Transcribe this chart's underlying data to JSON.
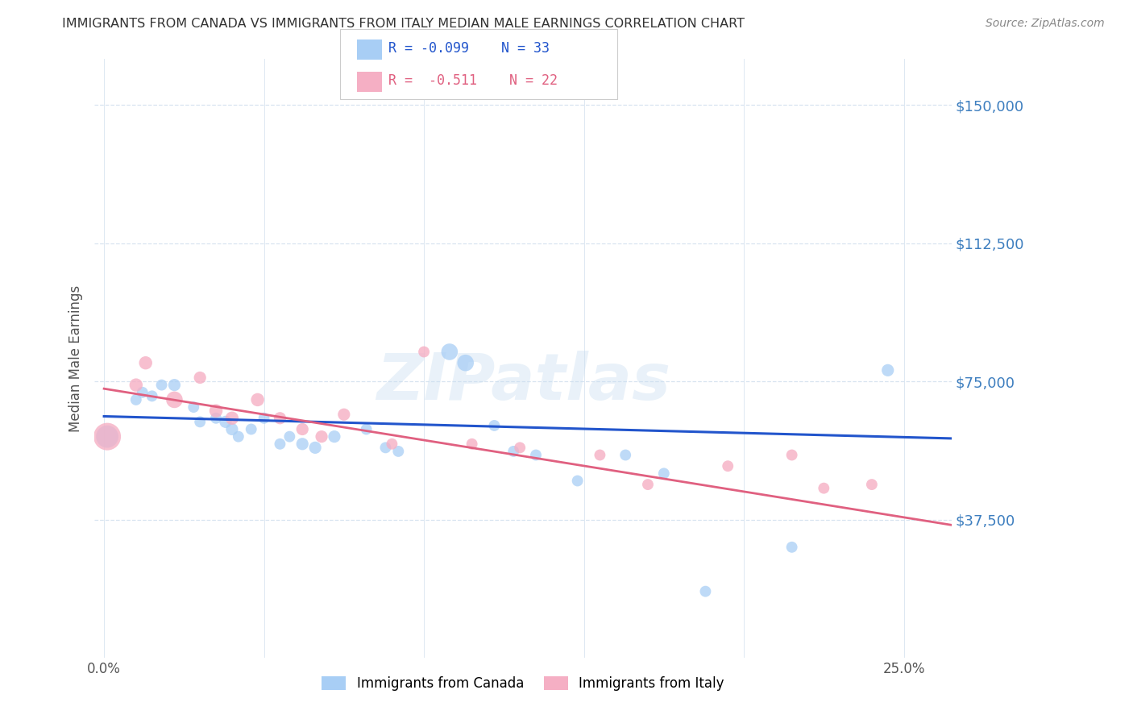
{
  "title": "IMMIGRANTS FROM CANADA VS IMMIGRANTS FROM ITALY MEDIAN MALE EARNINGS CORRELATION CHART",
  "source": "Source: ZipAtlas.com",
  "ylabel": "Median Male Earnings",
  "ytick_labels": [
    "$37,500",
    "$75,000",
    "$112,500",
    "$150,000"
  ],
  "ytick_values": [
    37500,
    75000,
    112500,
    150000
  ],
  "ymin": 0,
  "ymax": 162500,
  "xmin": -0.003,
  "xmax": 0.265,
  "background_color": "#ffffff",
  "watermark": "ZIPatlas",
  "legend_r_canada": "R = -0.099",
  "legend_n_canada": "N = 33",
  "legend_r_italy": "R =  -0.511",
  "legend_n_italy": "N = 22",
  "canada_color": "#a8cef5",
  "italy_color": "#f5afc4",
  "canada_line_color": "#2255cc",
  "italy_line_color": "#e06080",
  "canada_x": [
    0.001,
    0.01,
    0.012,
    0.015,
    0.018,
    0.022,
    0.028,
    0.03,
    0.035,
    0.038,
    0.04,
    0.042,
    0.046,
    0.05,
    0.055,
    0.058,
    0.062,
    0.066,
    0.072,
    0.082,
    0.088,
    0.092,
    0.108,
    0.113,
    0.122,
    0.128,
    0.135,
    0.148,
    0.163,
    0.175,
    0.188,
    0.215,
    0.245
  ],
  "canada_y": [
    60000,
    70000,
    72000,
    71000,
    74000,
    74000,
    68000,
    64000,
    65000,
    64000,
    62000,
    60000,
    62000,
    65000,
    58000,
    60000,
    58000,
    57000,
    60000,
    62000,
    57000,
    56000,
    83000,
    80000,
    63000,
    56000,
    55000,
    48000,
    55000,
    50000,
    18000,
    30000,
    78000
  ],
  "canada_size": [
    400,
    100,
    100,
    100,
    100,
    120,
    100,
    100,
    100,
    120,
    120,
    100,
    100,
    100,
    100,
    100,
    120,
    120,
    120,
    100,
    100,
    100,
    220,
    220,
    100,
    100,
    100,
    100,
    100,
    100,
    100,
    100,
    120
  ],
  "italy_x": [
    0.001,
    0.01,
    0.013,
    0.022,
    0.03,
    0.035,
    0.04,
    0.048,
    0.055,
    0.062,
    0.068,
    0.075,
    0.09,
    0.1,
    0.115,
    0.13,
    0.155,
    0.17,
    0.195,
    0.215,
    0.225,
    0.24
  ],
  "italy_y": [
    60000,
    74000,
    80000,
    70000,
    76000,
    67000,
    65000,
    70000,
    65000,
    62000,
    60000,
    66000,
    58000,
    83000,
    58000,
    57000,
    55000,
    47000,
    52000,
    55000,
    46000,
    47000
  ],
  "italy_size": [
    600,
    140,
    140,
    220,
    120,
    140,
    140,
    140,
    120,
    120,
    120,
    120,
    100,
    100,
    100,
    100,
    100,
    100,
    100,
    100,
    100,
    100
  ],
  "canada_trendline_x": [
    0.0,
    0.265
  ],
  "canada_trendline_y": [
    65500,
    59500
  ],
  "italy_trendline_x": [
    0.0,
    0.265
  ],
  "italy_trendline_y": [
    73000,
    36000
  ],
  "grid_color": "#d8e4f0",
  "title_color": "#333333",
  "ytick_color": "#3d7ebf",
  "xtick_color": "#555555",
  "source_color": "#888888",
  "ylabel_color": "#555555"
}
